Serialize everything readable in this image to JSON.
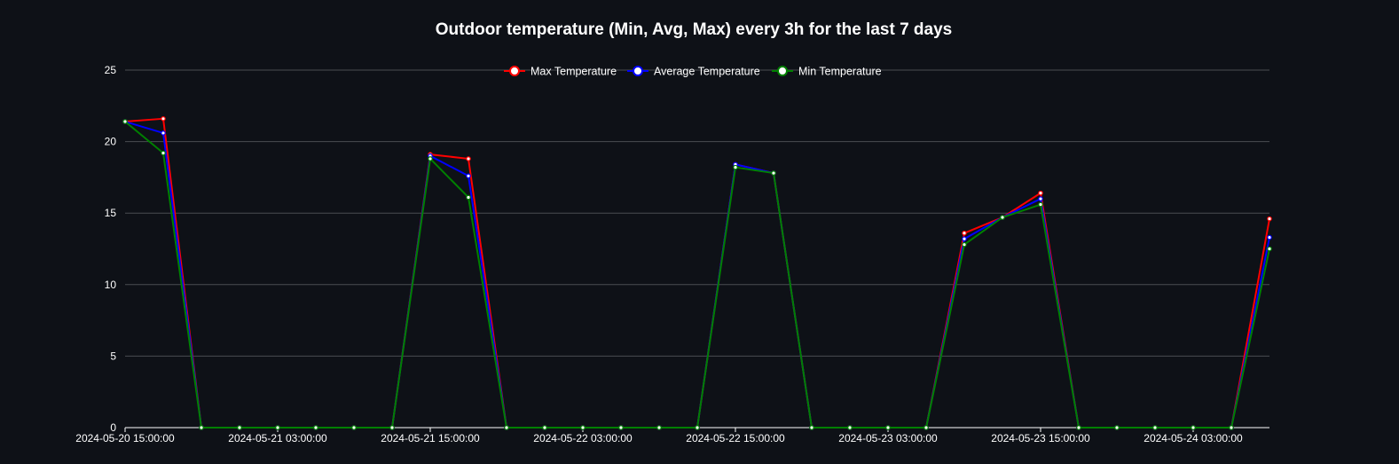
{
  "chart_data": {
    "type": "line",
    "title": "Outdoor temperature (Min, Avg, Max) every 3h for the last 7 days",
    "xlabel": "",
    "ylabel": "",
    "ylim": [
      0,
      25
    ],
    "yticks": [
      0,
      5,
      10,
      15,
      20,
      25
    ],
    "grid": true,
    "legend_position": "top-center",
    "x": [
      "2024-05-20 15:00:00",
      "2024-05-20 18:00:00",
      "2024-05-20 21:00:00",
      "2024-05-21 00:00:00",
      "2024-05-21 03:00:00",
      "2024-05-21 06:00:00",
      "2024-05-21 09:00:00",
      "2024-05-21 12:00:00",
      "2024-05-21 15:00:00",
      "2024-05-21 18:00:00",
      "2024-05-21 21:00:00",
      "2024-05-22 00:00:00",
      "2024-05-22 03:00:00",
      "2024-05-22 06:00:00",
      "2024-05-22 09:00:00",
      "2024-05-22 12:00:00",
      "2024-05-22 15:00:00",
      "2024-05-22 18:00:00",
      "2024-05-22 21:00:00",
      "2024-05-23 00:00:00",
      "2024-05-23 03:00:00",
      "2024-05-23 06:00:00",
      "2024-05-23 09:00:00",
      "2024-05-23 12:00:00",
      "2024-05-23 15:00:00",
      "2024-05-23 18:00:00",
      "2024-05-23 21:00:00",
      "2024-05-24 00:00:00",
      "2024-05-24 03:00:00",
      "2024-05-24 06:00:00",
      "2024-05-24 09:00:00"
    ],
    "xtick_labels": [
      "2024-05-20 15:00:00",
      "2024-05-21 03:00:00",
      "2024-05-21 15:00:00",
      "2024-05-22 03:00:00",
      "2024-05-22 15:00:00",
      "2024-05-23 03:00:00",
      "2024-05-23 15:00:00",
      "2024-05-24 03:00:00"
    ],
    "series": [
      {
        "name": "Max Temperature",
        "color": "#ff0000",
        "values": [
          21.4,
          21.6,
          0,
          0,
          0,
          0,
          0,
          0,
          19.1,
          18.8,
          0,
          0,
          0,
          0,
          0,
          0,
          18.4,
          17.8,
          0,
          0,
          0,
          0,
          13.6,
          14.7,
          16.4,
          0,
          0,
          0,
          0,
          0,
          14.6
        ]
      },
      {
        "name": "Average Temperature",
        "color": "#0000ff",
        "values": [
          21.4,
          20.6,
          0,
          0,
          0,
          0,
          0,
          0,
          19.0,
          17.6,
          0,
          0,
          0,
          0,
          0,
          0,
          18.4,
          17.8,
          0,
          0,
          0,
          0,
          13.2,
          14.7,
          16.0,
          0,
          0,
          0,
          0,
          0,
          13.3
        ]
      },
      {
        "name": "Min Temperature",
        "color": "#008000",
        "values": [
          21.4,
          19.2,
          0,
          0,
          0,
          0,
          0,
          0,
          18.8,
          16.1,
          0,
          0,
          0,
          0,
          0,
          0,
          18.2,
          17.8,
          0,
          0,
          0,
          0,
          12.8,
          14.7,
          15.6,
          0,
          0,
          0,
          0,
          0,
          12.5
        ]
      }
    ]
  }
}
